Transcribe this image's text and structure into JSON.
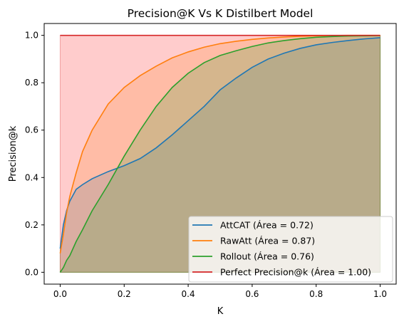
{
  "chart_data": {
    "type": "area",
    "title": "Precision@K Vs K Distilbert Model",
    "xlabel": "K",
    "ylabel": "Precision@k",
    "xlim": [
      -0.05,
      1.05
    ],
    "ylim": [
      -0.05,
      1.05
    ],
    "xticks": [
      "0.0",
      "0.2",
      "0.4",
      "0.6",
      "0.8",
      "1.0"
    ],
    "yticks": [
      "0.0",
      "0.2",
      "0.4",
      "0.6",
      "0.8",
      "1.0"
    ],
    "grid": false,
    "legend_position": "bottom-right",
    "x": [
      0,
      0.01,
      0.02,
      0.03,
      0.05,
      0.07,
      0.1,
      0.15,
      0.2,
      0.25,
      0.3,
      0.35,
      0.4,
      0.45,
      0.5,
      0.55,
      0.6,
      0.65,
      0.7,
      0.75,
      0.8,
      0.85,
      0.9,
      0.95,
      1.0
    ],
    "series": [
      {
        "name": "AttCAT",
        "legend": "AttCAT (Área = 0.72)",
        "color": "#1f77b4",
        "fill": "#1f77b4",
        "values": [
          0.1,
          0.2,
          0.26,
          0.3,
          0.35,
          0.37,
          0.395,
          0.425,
          0.45,
          0.48,
          0.525,
          0.58,
          0.64,
          0.7,
          0.77,
          0.82,
          0.865,
          0.9,
          0.925,
          0.945,
          0.96,
          0.97,
          0.978,
          0.985,
          0.99
        ]
      },
      {
        "name": "RawAtt",
        "legend": "RawAtt (Área = 0.87)",
        "color": "#ff7f0e",
        "fill": "#ff7f0e",
        "values": [
          0.08,
          0.16,
          0.25,
          0.32,
          0.42,
          0.51,
          0.6,
          0.71,
          0.78,
          0.83,
          0.87,
          0.905,
          0.93,
          0.95,
          0.965,
          0.975,
          0.983,
          0.989,
          0.993,
          0.996,
          0.998,
          0.999,
          1.0,
          1.0,
          1.0
        ]
      },
      {
        "name": "Rollout",
        "legend": "Rollout (Área = 0.76)",
        "color": "#2ca02c",
        "fill": "#2ca02c",
        "values": [
          0.0,
          0.02,
          0.05,
          0.07,
          0.13,
          0.18,
          0.26,
          0.37,
          0.49,
          0.6,
          0.7,
          0.78,
          0.84,
          0.885,
          0.915,
          0.935,
          0.953,
          0.968,
          0.978,
          0.986,
          0.992,
          0.995,
          0.997,
          0.998,
          0.999
        ]
      },
      {
        "name": "Perfect Precision@k",
        "legend": "Perfect Precision@k (Área = 1.00)",
        "color": "#d62728",
        "fill": "#ff0000",
        "values": [
          1,
          1,
          1,
          1,
          1,
          1,
          1,
          1,
          1,
          1,
          1,
          1,
          1,
          1,
          1,
          1,
          1,
          1,
          1,
          1,
          1,
          1,
          1,
          1,
          1
        ]
      }
    ]
  }
}
